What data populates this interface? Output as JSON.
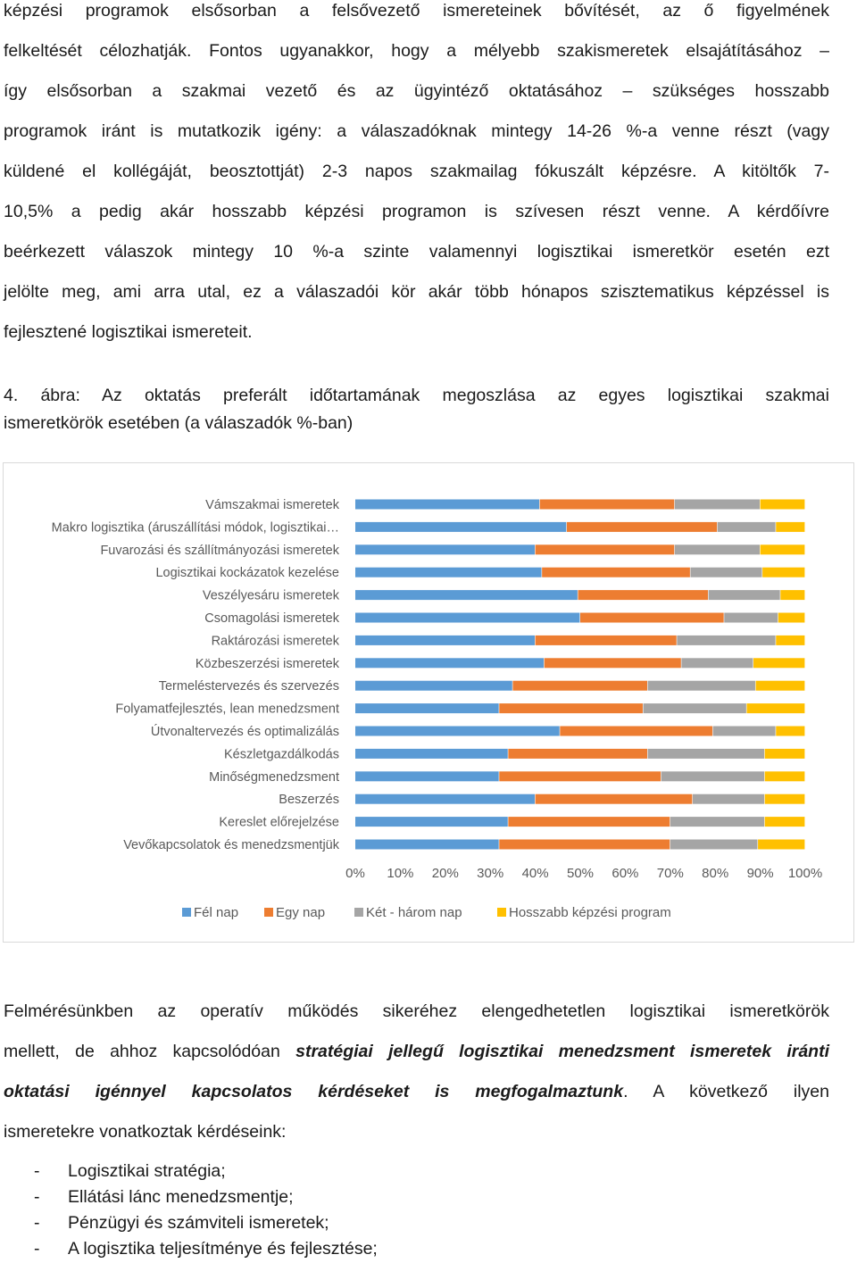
{
  "intro_lines": [
    "képzési programok elsősorban a felsővezető ismereteinek bővítését, az ő figyelmének",
    "felkeltését célozhatják. Fontos ugyanakkor, hogy a mélyebb szakismeretek elsajátításához –",
    "így elsősorban a szakmai vezető és az ügyintéző oktatásához – szükséges hosszabb",
    "programok iránt is mutatkozik igény: a válaszadóknak mintegy 14-26 %-a venne részt (vagy",
    "küldené el kollégáját, beosztottját) 2-3 napos szakmailag fókuszált képzésre. A kitöltők 7-",
    "10,5% a pedig akár hosszabb képzési programon is szívesen részt venne. A kérdőívre",
    "beérkezett válaszok mintegy 10 %-a szinte valamennyi logisztikai ismeretkör esetén ezt",
    "jelölte meg, ami arra utal, ez a válaszadói kör akár több hónapos szisztematikus képzéssel is",
    "fejlesztené logisztikai ismereteit."
  ],
  "caption_lines": [
    "4. ábra: Az oktatás preferált időtartamának megoszlása az egyes logisztikai szakmai",
    "ismeretkörök esetében (a válaszadók %-ban)"
  ],
  "chart_data": {
    "type": "bar",
    "orientation": "horizontal",
    "stacked": "percent",
    "categories": [
      "Vámszakmai ismeretek",
      "Makro logisztika (áruszállítási módok, logisztikai…",
      "Fuvarozási és szállítmányozási ismeretek",
      "Logisztikai kockázatok kezelése",
      "Veszélyesáru ismeretek",
      "Csomagolási ismeretek",
      "Raktározási ismeretek",
      "Közbeszerzési ismeretek",
      "Termeléstervezés és szervezés",
      "Folyamatfejlesztés, lean menedzsment",
      "Útvonaltervezés és optimalizálás",
      "Készletgazdálkodás",
      "Minőségmenedzsment",
      "Beszerzés",
      "Kereslet előrejelzése",
      "Vevőkapcsolatok és menedzsmentjük"
    ],
    "series": [
      {
        "name": "Fél nap",
        "color": "#5b9bd5",
        "values": [
          41,
          47,
          40,
          41.5,
          49.5,
          50,
          40,
          42,
          35,
          32,
          45.5,
          34,
          32,
          40,
          34,
          32
        ]
      },
      {
        "name": "Egy nap",
        "color": "#ed7d31",
        "values": [
          30,
          33.5,
          31,
          33,
          29,
          32,
          31.5,
          30.5,
          30,
          32,
          34,
          31,
          36,
          35,
          36,
          38
        ]
      },
      {
        "name": "Két - három nap",
        "color": "#a5a5a5",
        "values": [
          19,
          13,
          19,
          16,
          16,
          12,
          22,
          16,
          24,
          23,
          14,
          26,
          23,
          16,
          21,
          19.5
        ]
      },
      {
        "name": "Hosszabb képzési program",
        "color": "#ffc000",
        "values": [
          10,
          6.5,
          10,
          9.5,
          5.5,
          6,
          6.5,
          11.5,
          11,
          13,
          6.5,
          9,
          9,
          9,
          9,
          10.5
        ]
      }
    ],
    "xticks": [
      "0%",
      "10%",
      "20%",
      "30%",
      "40%",
      "50%",
      "60%",
      "70%",
      "80%",
      "90%",
      "100%"
    ],
    "xlim": [
      0,
      100
    ],
    "legend_position": "bottom",
    "grid": false
  },
  "para2": {
    "line1": "Felmérésünkben az operatív működés sikeréhez elengedhetetlen logisztikai ismeretkörök",
    "line2_a": "mellett, de ahhoz kapcsolódóan ",
    "line2_b": "stratégiai jellegű logisztikai menedzsment ismeretek iránti",
    "line3_a": "oktatási igénnyel kapcsolatos kérdéseket is megfogalmaztunk",
    "line3_b": ". A következő ilyen",
    "line4": "ismeretekre vonatkoztak kérdéseink:"
  },
  "list_items": [
    {
      "dash": "-",
      "text": "Logisztikai stratégia;"
    },
    {
      "dash": "-",
      "text": "Ellátási lánc menedzsmentje;"
    },
    {
      "dash": "-",
      "text": "Pénzügyi és számviteli ismeretek;"
    },
    {
      "dash": "-",
      "text": "A logisztika teljesítménye és fejlesztése;"
    }
  ]
}
